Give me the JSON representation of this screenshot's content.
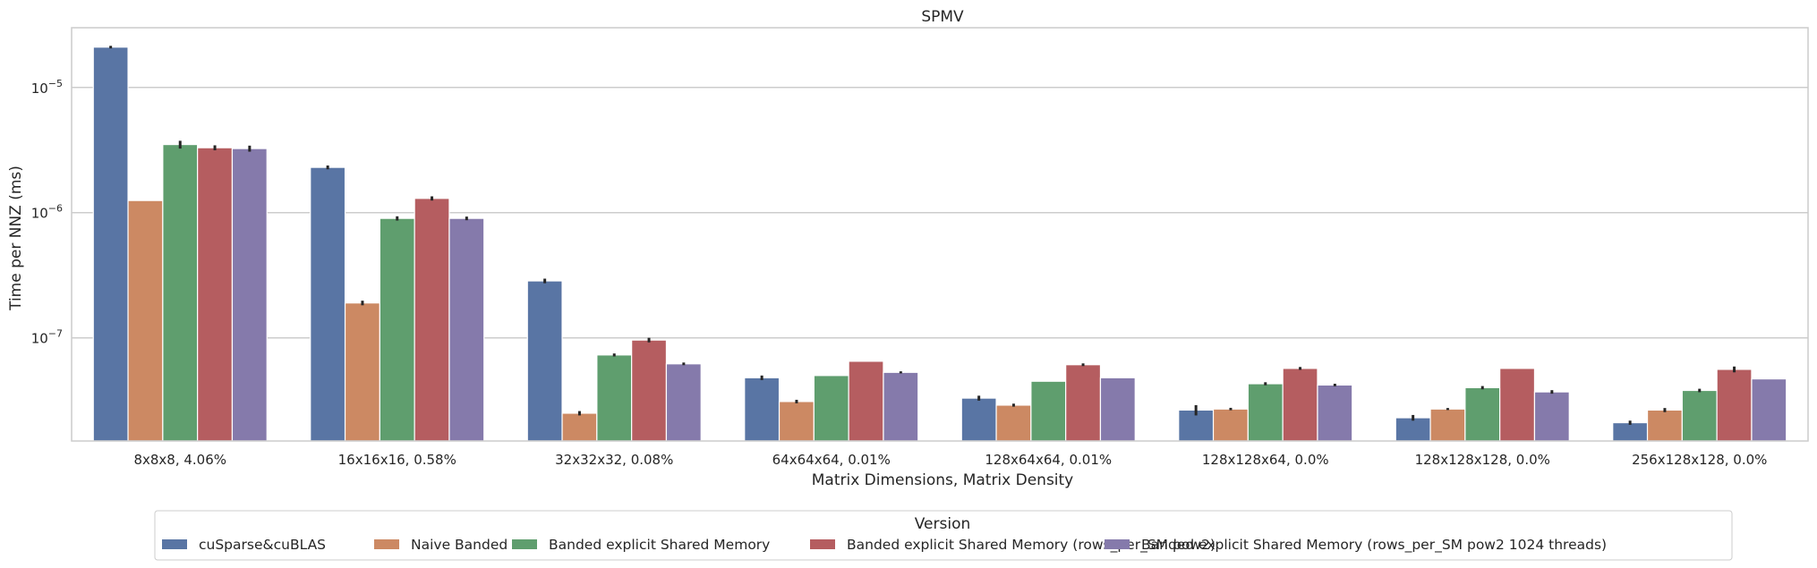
{
  "chart_data": {
    "type": "bar",
    "title": "SPMV",
    "xlabel": "Matrix Dimensions, Matrix Density",
    "ylabel": "Time per NNZ (ms)",
    "yscale": "log",
    "ylim": [
      1.5e-08,
      3e-05
    ],
    "yticks": [
      {
        "value": 1e-07,
        "base": "10",
        "exp": "−7"
      },
      {
        "value": 1e-06,
        "base": "10",
        "exp": "−6"
      },
      {
        "value": 1e-05,
        "base": "10",
        "exp": "−5"
      }
    ],
    "grid": true,
    "legend_placement": "bottom-center",
    "legend_title": "Version",
    "categories": [
      "8x8x8, 4.06%",
      "16x16x16, 0.58%",
      "32x32x32, 0.08%",
      "64x64x64, 0.01%",
      "128x64x64, 0.01%",
      "128x128x64, 0.0%",
      "128x128x128, 0.0%",
      "256x128x128, 0.0%"
    ],
    "series": [
      {
        "name": "cuSparse&cuBLAS",
        "color": "#5975a4",
        "values": [
          2.1e-05,
          2.3e-06,
          2.85e-07,
          4.8e-08,
          3.3e-08,
          2.65e-08,
          2.3e-08,
          2.1e-08
        ],
        "err": [
          5e-07,
          8e-08,
          1.2e-08,
          2e-09,
          1.5e-09,
          2.5e-09,
          1.2e-09,
          8e-10
        ]
      },
      {
        "name": "Naive Banded",
        "color": "#cc8963",
        "values": [
          1.25e-06,
          1.9e-07,
          2.5e-08,
          3.1e-08,
          2.9e-08,
          2.7e-08,
          2.7e-08,
          2.65e-08
        ],
        "err": [
          0,
          8e-09,
          1e-09,
          1e-09,
          8e-10,
          6e-10,
          5e-10,
          1e-09
        ]
      },
      {
        "name": "Banded explicit Shared Memory",
        "color": "#5f9e6e",
        "values": [
          3.5e-06,
          9e-07,
          7.3e-08,
          5e-08,
          4.5e-08,
          4.3e-08,
          4e-08,
          3.8e-08
        ],
        "err": [
          2.5e-07,
          3.5e-08,
          2e-09,
          0,
          0,
          1.2e-09,
          1.2e-09,
          1.2e-09
        ]
      },
      {
        "name": "Banded explicit Shared Memory (rows_per_SM pow2)",
        "color": "#b55d60",
        "values": [
          3.3e-06,
          1.3e-06,
          9.6e-08,
          6.5e-08,
          6.1e-08,
          5.7e-08,
          5.7e-08,
          5.6e-08
        ],
        "err": [
          1.5e-07,
          5e-08,
          4e-09,
          0,
          1.5e-09,
          1.5e-09,
          0,
          3e-09
        ]
      },
      {
        "name": "Banded explicit Shared Memory (rows_per_SM pow2 1024 threads)",
        "color": "#857aab",
        "values": [
          3.25e-06,
          9e-07,
          6.2e-08,
          5.3e-08,
          4.8e-08,
          4.2e-08,
          3.7e-08,
          4.7e-08
        ],
        "err": [
          1.8e-07,
          3e-08,
          1.5e-09,
          1e-09,
          0,
          1e-09,
          1.2e-09,
          0
        ]
      }
    ]
  }
}
